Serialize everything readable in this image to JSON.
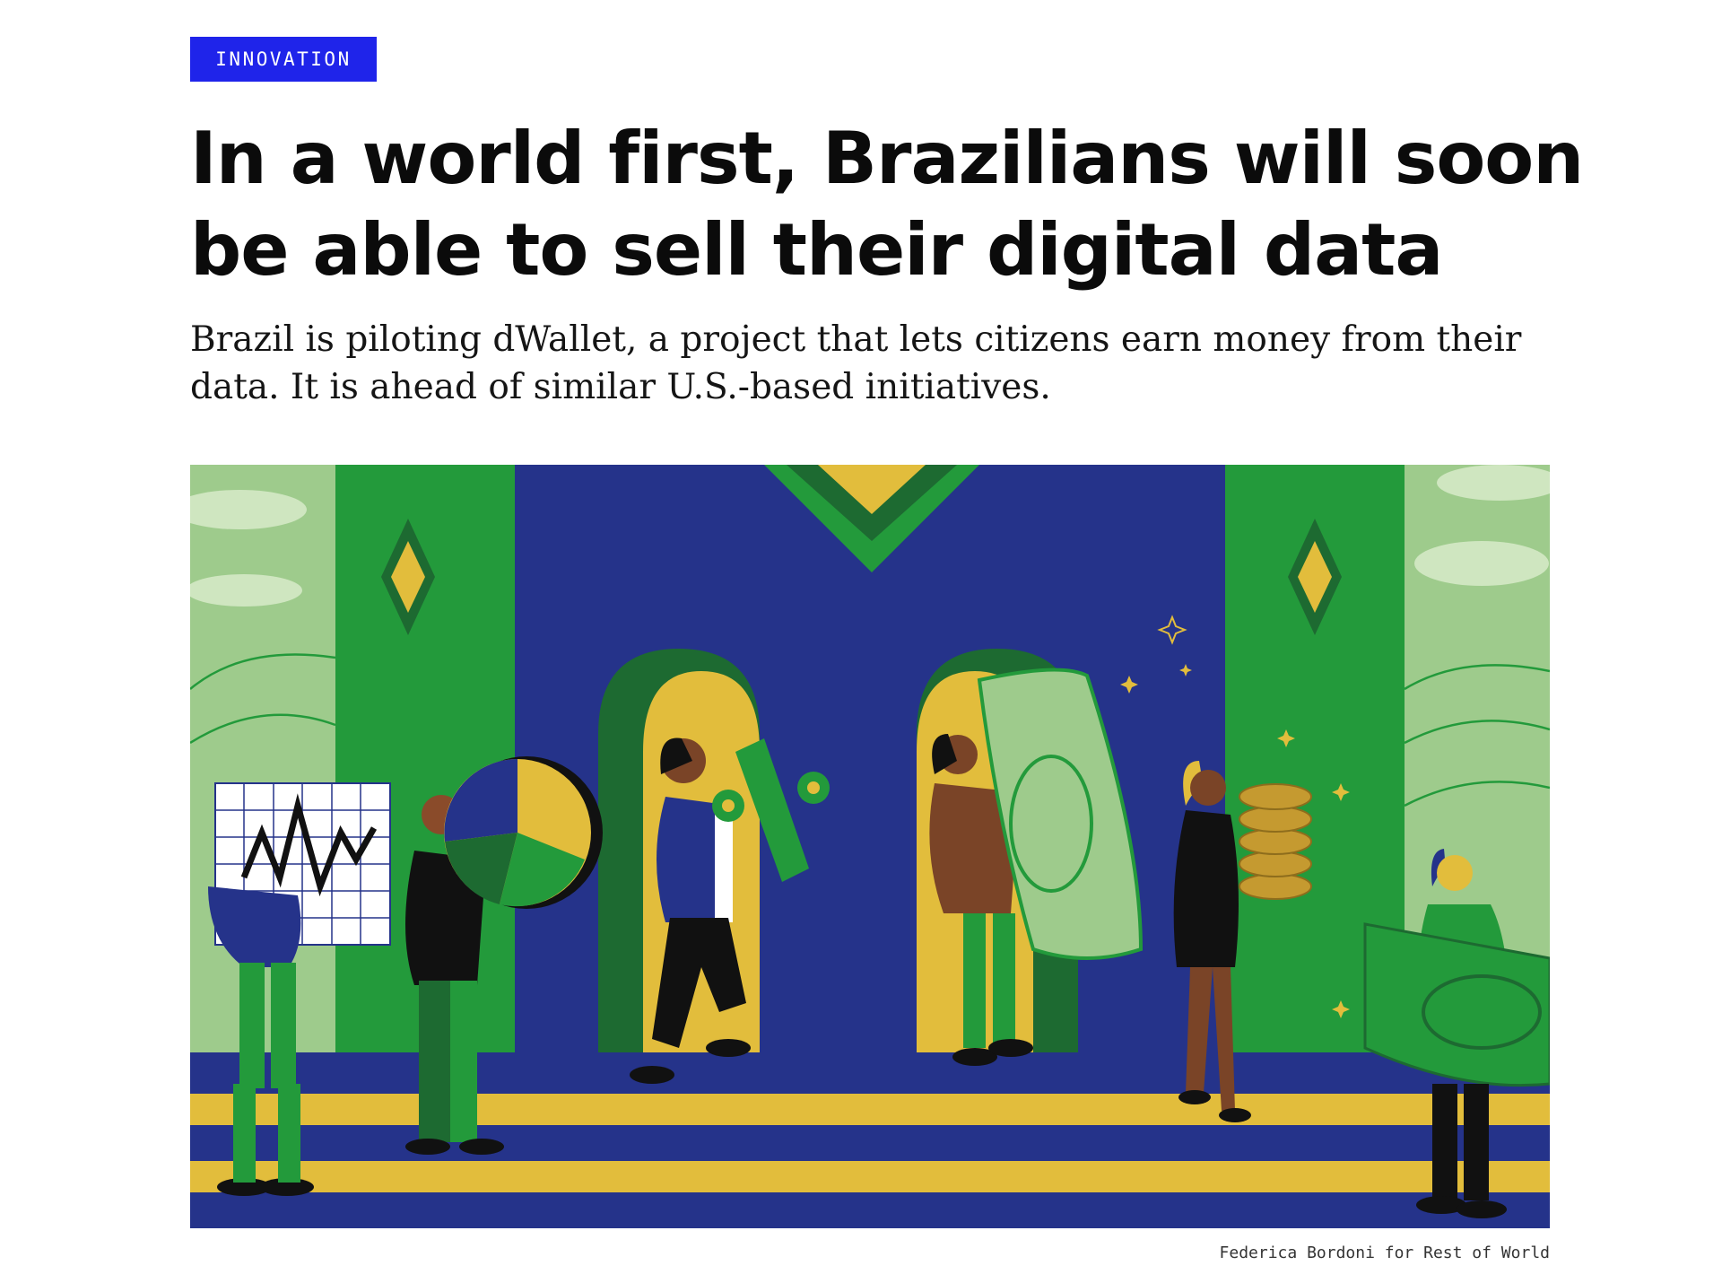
{
  "article": {
    "category": "INNOVATION",
    "headline": "In a world first, Brazilians will soon be able to sell their digital data",
    "dek": "Brazil is piloting dWallet, a project that lets citizens earn money from their data. It is ahead of similar U.S.-based initiatives.",
    "image_credit": "Federica Bordoni for Rest of World"
  },
  "colors": {
    "accent": "#1f24ea",
    "brazil_green": "#239a3b",
    "brazil_blue": "#25338a",
    "brazil_yellow": "#e2bd3c"
  }
}
